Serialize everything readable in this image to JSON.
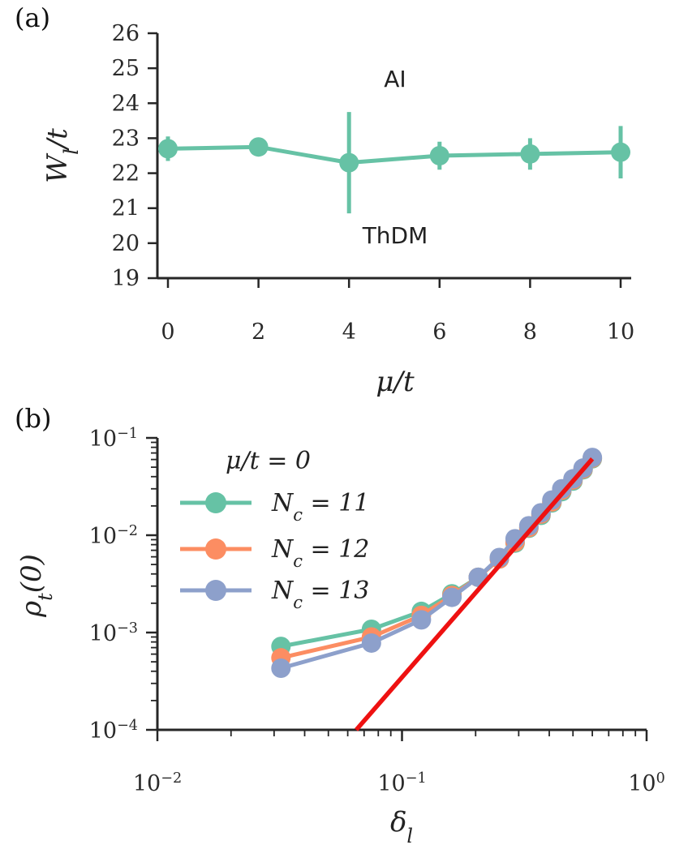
{
  "chart_data": [
    {
      "panel_label": "(a)",
      "type": "line",
      "xlabel": "μ/t",
      "ylabel": "W_l/t",
      "xlim": [
        0,
        10
      ],
      "ylim": [
        19,
        26
      ],
      "xticks": [
        0,
        2,
        4,
        6,
        8,
        10
      ],
      "yticks": [
        19,
        20,
        21,
        22,
        23,
        24,
        25,
        26
      ],
      "xtick_labels": [
        "0",
        "2",
        "4",
        "6",
        "8",
        "10"
      ],
      "ytick_labels": [
        "19",
        "20",
        "21",
        "22",
        "23",
        "24",
        "25",
        "26"
      ],
      "annotations": [
        "AI",
        "ThDM"
      ],
      "series": [
        {
          "color": "#66c2a5",
          "x": [
            0,
            2,
            4,
            6,
            8,
            10
          ],
          "y": [
            22.7,
            22.75,
            22.3,
            22.5,
            22.55,
            22.6
          ],
          "yerr": [
            0.35,
            0.1,
            1.45,
            0.4,
            0.45,
            0.75
          ]
        }
      ]
    },
    {
      "panel_label": "(b)",
      "type": "line",
      "xscale": "log",
      "yscale": "log",
      "xlabel": "δ_l",
      "ylabel": "ρ_t(0)",
      "xlim": [
        0.01,
        1
      ],
      "ylim": [
        0.0001,
        0.1
      ],
      "xtick_labels": [
        "10^-2",
        "10^-1",
        "10^0"
      ],
      "ytick_labels": [
        "10^-4",
        "10^-3",
        "10^-2",
        "10^-1"
      ],
      "legend_title": "μ/t = 0",
      "legend_position": "upper-left",
      "series": [
        {
          "name": "N_c = 11",
          "color": "#66c2a5",
          "x": [
            0.032,
            0.075,
            0.12,
            0.16,
            0.205,
            0.25,
            0.29,
            0.33,
            0.37,
            0.41,
            0.45,
            0.5,
            0.55,
            0.6
          ],
          "y": [
            0.00072,
            0.00108,
            0.00165,
            0.0025,
            0.0037,
            0.0057,
            0.0083,
            0.0118,
            0.016,
            0.0215,
            0.028,
            0.036,
            0.047,
            0.061
          ]
        },
        {
          "name": "N_c = 12",
          "color": "#fc8d62",
          "x": [
            0.032,
            0.075,
            0.12,
            0.16,
            0.205,
            0.25,
            0.29,
            0.33,
            0.37,
            0.41,
            0.45,
            0.5,
            0.55,
            0.6
          ],
          "y": [
            0.00055,
            0.0009,
            0.0015,
            0.0024,
            0.0037,
            0.0057,
            0.0085,
            0.012,
            0.0165,
            0.022,
            0.029,
            0.037,
            0.048,
            0.062
          ]
        },
        {
          "name": "N_c = 13",
          "color": "#8da0cb",
          "x": [
            0.032,
            0.075,
            0.12,
            0.16,
            0.205,
            0.25,
            0.29,
            0.33,
            0.37,
            0.41,
            0.45,
            0.5,
            0.55,
            0.6
          ],
          "y": [
            0.00043,
            0.00078,
            0.00135,
            0.0023,
            0.0037,
            0.0059,
            0.0092,
            0.0125,
            0.017,
            0.023,
            0.03,
            0.038,
            0.049,
            0.063
          ]
        },
        {
          "color": "#ee1111",
          "type": "fit",
          "x": [
            0.065,
            0.6
          ],
          "y": [
            0.0001,
            0.061
          ]
        }
      ]
    }
  ]
}
